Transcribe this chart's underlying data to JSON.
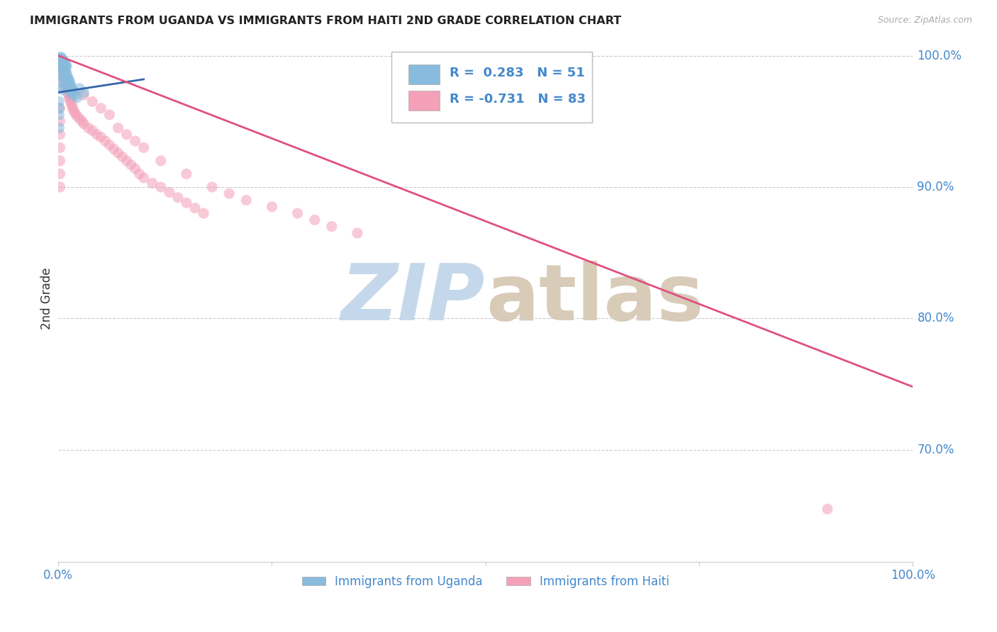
{
  "title": "IMMIGRANTS FROM UGANDA VS IMMIGRANTS FROM HAITI 2ND GRADE CORRELATION CHART",
  "source": "Source: ZipAtlas.com",
  "ylabel": "2nd Grade",
  "ylabel_right_labels": [
    "100.0%",
    "90.0%",
    "80.0%",
    "70.0%"
  ],
  "ylabel_right_positions": [
    1.0,
    0.9,
    0.8,
    0.7
  ],
  "legend_label1": "Immigrants from Uganda",
  "legend_label2": "Immigrants from Haiti",
  "blue_color": "#88bbdd",
  "pink_color": "#f4a0b8",
  "blue_line_color": "#3366aa",
  "pink_line_color": "#e05080",
  "title_color": "#222222",
  "axis_label_color": "#4488cc",
  "xlim": [
    0.0,
    1.0
  ],
  "ylim": [
    0.615,
    1.015
  ],
  "uganda_line": [
    [
      0.0,
      0.972
    ],
    [
      0.1,
      0.982
    ]
  ],
  "haiti_line": [
    [
      0.0,
      1.0
    ],
    [
      1.0,
      0.748
    ]
  ],
  "uganda_points": [
    [
      0.001,
      0.997
    ],
    [
      0.002,
      0.998
    ],
    [
      0.003,
      0.999
    ],
    [
      0.004,
      0.998
    ],
    [
      0.005,
      0.997
    ],
    [
      0.006,
      0.996
    ],
    [
      0.007,
      0.995
    ],
    [
      0.008,
      0.994
    ],
    [
      0.009,
      0.993
    ],
    [
      0.01,
      0.992
    ],
    [
      0.002,
      0.995
    ],
    [
      0.003,
      0.993
    ],
    [
      0.004,
      0.991
    ],
    [
      0.005,
      0.989
    ],
    [
      0.006,
      0.988
    ],
    [
      0.007,
      0.986
    ],
    [
      0.008,
      0.984
    ],
    [
      0.009,
      0.982
    ],
    [
      0.01,
      0.98
    ],
    [
      0.011,
      0.978
    ],
    [
      0.012,
      0.976
    ],
    [
      0.013,
      0.975
    ],
    [
      0.014,
      0.973
    ],
    [
      0.015,
      0.971
    ],
    [
      0.001,
      0.99
    ],
    [
      0.002,
      0.985
    ],
    [
      0.003,
      0.98
    ],
    [
      0.004,
      0.976
    ],
    [
      0.005,
      0.974
    ],
    [
      0.001,
      0.996
    ],
    [
      0.006,
      0.994
    ],
    [
      0.007,
      0.992
    ],
    [
      0.008,
      0.99
    ],
    [
      0.009,
      0.988
    ],
    [
      0.01,
      0.986
    ],
    [
      0.011,
      0.984
    ],
    [
      0.012,
      0.982
    ],
    [
      0.013,
      0.981
    ],
    [
      0.014,
      0.979
    ],
    [
      0.015,
      0.977
    ],
    [
      0.016,
      0.975
    ],
    [
      0.017,
      0.974
    ],
    [
      0.018,
      0.972
    ],
    [
      0.02,
      0.97
    ],
    [
      0.022,
      0.968
    ],
    [
      0.001,
      0.965
    ],
    [
      0.001,
      0.96
    ],
    [
      0.001,
      0.955
    ],
    [
      0.025,
      0.975
    ],
    [
      0.03,
      0.972
    ],
    [
      0.001,
      0.945
    ]
  ],
  "haiti_points": [
    [
      0.002,
      0.997
    ],
    [
      0.003,
      0.995
    ],
    [
      0.004,
      0.993
    ],
    [
      0.005,
      0.991
    ],
    [
      0.006,
      0.989
    ],
    [
      0.007,
      0.987
    ],
    [
      0.008,
      0.985
    ],
    [
      0.009,
      0.983
    ],
    [
      0.01,
      0.981
    ],
    [
      0.011,
      0.979
    ],
    [
      0.012,
      0.977
    ],
    [
      0.013,
      0.975
    ],
    [
      0.014,
      0.973
    ],
    [
      0.015,
      0.971
    ],
    [
      0.016,
      0.969
    ],
    [
      0.002,
      0.99
    ],
    [
      0.003,
      0.988
    ],
    [
      0.004,
      0.986
    ],
    [
      0.005,
      0.984
    ],
    [
      0.006,
      0.982
    ],
    [
      0.007,
      0.98
    ],
    [
      0.008,
      0.978
    ],
    [
      0.009,
      0.976
    ],
    [
      0.01,
      0.974
    ],
    [
      0.011,
      0.972
    ],
    [
      0.012,
      0.97
    ],
    [
      0.013,
      0.968
    ],
    [
      0.014,
      0.966
    ],
    [
      0.015,
      0.964
    ],
    [
      0.016,
      0.962
    ],
    [
      0.017,
      0.96
    ],
    [
      0.018,
      0.958
    ],
    [
      0.02,
      0.956
    ],
    [
      0.022,
      0.954
    ],
    [
      0.025,
      0.952
    ],
    [
      0.028,
      0.95
    ],
    [
      0.03,
      0.948
    ],
    [
      0.035,
      0.945
    ],
    [
      0.04,
      0.943
    ],
    [
      0.045,
      0.94
    ],
    [
      0.05,
      0.938
    ],
    [
      0.055,
      0.935
    ],
    [
      0.06,
      0.932
    ],
    [
      0.065,
      0.929
    ],
    [
      0.07,
      0.926
    ],
    [
      0.075,
      0.923
    ],
    [
      0.08,
      0.92
    ],
    [
      0.085,
      0.917
    ],
    [
      0.09,
      0.914
    ],
    [
      0.095,
      0.91
    ],
    [
      0.1,
      0.907
    ],
    [
      0.11,
      0.903
    ],
    [
      0.12,
      0.9
    ],
    [
      0.13,
      0.896
    ],
    [
      0.14,
      0.892
    ],
    [
      0.15,
      0.888
    ],
    [
      0.16,
      0.884
    ],
    [
      0.17,
      0.88
    ],
    [
      0.002,
      0.96
    ],
    [
      0.002,
      0.95
    ],
    [
      0.002,
      0.94
    ],
    [
      0.002,
      0.93
    ],
    [
      0.002,
      0.92
    ],
    [
      0.002,
      0.91
    ],
    [
      0.002,
      0.9
    ],
    [
      0.05,
      0.96
    ],
    [
      0.06,
      0.955
    ],
    [
      0.03,
      0.97
    ],
    [
      0.04,
      0.965
    ],
    [
      0.07,
      0.945
    ],
    [
      0.08,
      0.94
    ],
    [
      0.09,
      0.935
    ],
    [
      0.1,
      0.93
    ],
    [
      0.12,
      0.92
    ],
    [
      0.15,
      0.91
    ],
    [
      0.18,
      0.9
    ],
    [
      0.2,
      0.895
    ],
    [
      0.22,
      0.89
    ],
    [
      0.25,
      0.885
    ],
    [
      0.28,
      0.88
    ],
    [
      0.3,
      0.875
    ],
    [
      0.32,
      0.87
    ],
    [
      0.35,
      0.865
    ],
    [
      0.9,
      0.655
    ]
  ]
}
